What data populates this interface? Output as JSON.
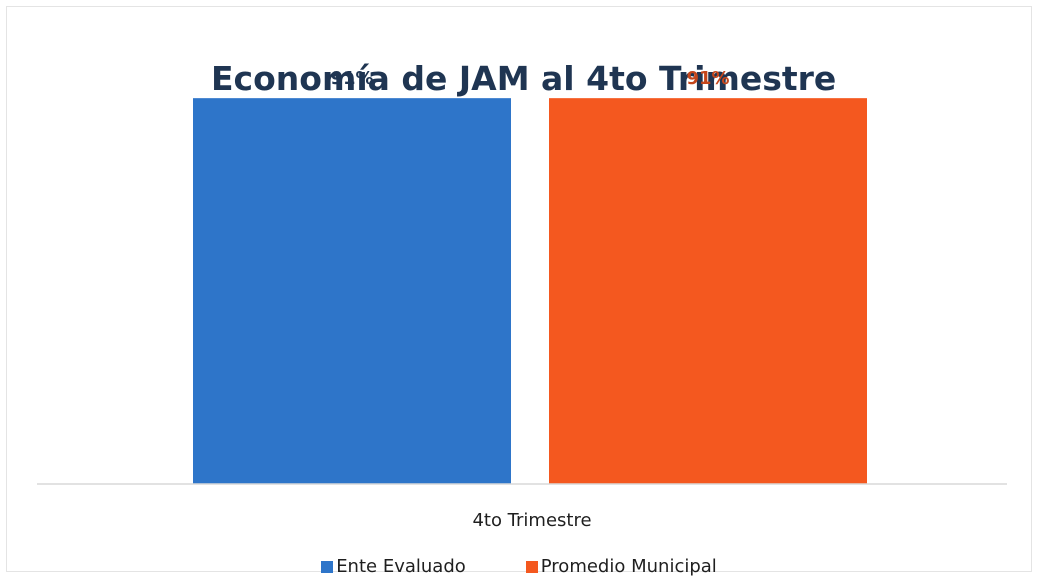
{
  "chart_data": {
    "type": "bar",
    "title": "Economía de JAM al 4to Trimestre",
    "categories": [
      "4to Trimestre"
    ],
    "series": [
      {
        "name": "Ente Evaluado",
        "values": [
          91
        ],
        "label": "91%",
        "color": "#2e75c9",
        "label_color": "#1f3552"
      },
      {
        "name": "Promedio Municipal",
        "values": [
          91
        ],
        "label": "91%",
        "color": "#f4581f",
        "label_color": "#c4461b"
      }
    ],
    "unit": "%",
    "ylim": [
      0,
      100
    ],
    "grid": false,
    "legend": "bottom"
  }
}
